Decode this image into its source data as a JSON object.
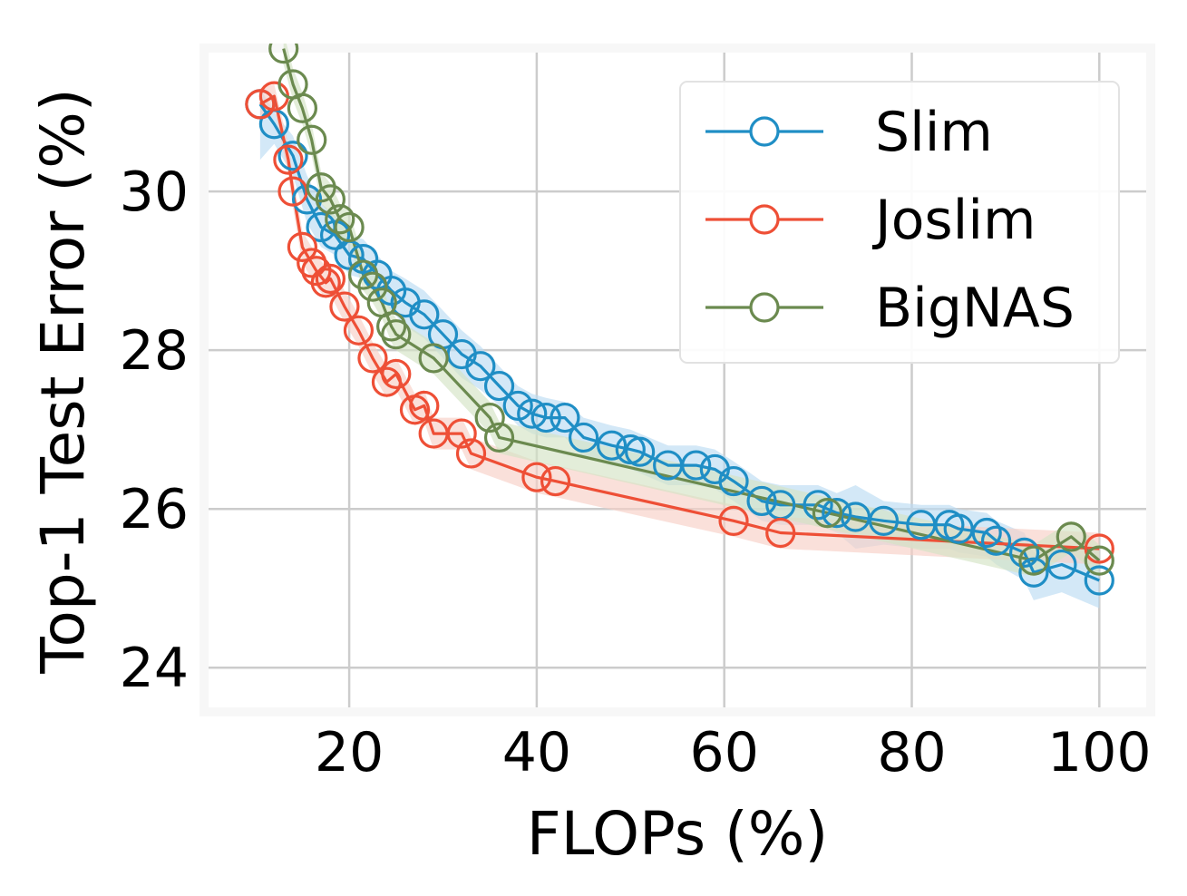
{
  "chart_data": {
    "type": "line",
    "title": "",
    "xlabel": "FLOPs (%)",
    "ylabel": "Top-1 Test Error (%)",
    "xlim": [
      5,
      105
    ],
    "ylim": [
      23.5,
      31.75
    ],
    "xticks": [
      20,
      40,
      60,
      80,
      100
    ],
    "yticks": [
      24,
      26,
      28,
      30
    ],
    "grid": true,
    "legend": "top-right",
    "series": [
      {
        "name": "Slim",
        "color": "#1f8ec5",
        "band_color": "#bcdcf3",
        "x": [
          10.5,
          12,
          14,
          15.5,
          17,
          18.5,
          20,
          21.5,
          23,
          24.5,
          26,
          28,
          30,
          32,
          34,
          36,
          38,
          39.5,
          41,
          43,
          45,
          48,
          50,
          51,
          54,
          57,
          59,
          61,
          64,
          66,
          70,
          72,
          74,
          77,
          81,
          84,
          85,
          88,
          89,
          92,
          93,
          96,
          100
        ],
        "y": [
          31.1,
          30.85,
          30.45,
          29.9,
          29.55,
          29.45,
          29.2,
          29.15,
          28.95,
          28.75,
          28.6,
          28.45,
          28.2,
          27.95,
          27.8,
          27.55,
          27.3,
          27.2,
          27.15,
          27.15,
          26.9,
          26.8,
          26.75,
          26.72,
          26.55,
          26.55,
          26.5,
          26.35,
          26.1,
          26.05,
          26.05,
          25.95,
          25.9,
          25.85,
          25.8,
          25.8,
          25.75,
          25.7,
          25.6,
          25.45,
          25.2,
          25.3,
          25.1
        ],
        "upper": [
          31.3,
          31.0,
          30.7,
          30.2,
          29.85,
          29.7,
          29.45,
          29.4,
          29.2,
          29.0,
          28.9,
          28.75,
          28.5,
          28.25,
          28.05,
          27.8,
          27.55,
          27.45,
          27.4,
          27.35,
          27.15,
          27.05,
          27.0,
          26.95,
          26.8,
          26.8,
          26.75,
          26.6,
          26.35,
          26.3,
          26.3,
          26.2,
          26.3,
          26.1,
          26.05,
          26.05,
          26.0,
          25.95,
          25.85,
          25.7,
          25.45,
          25.55,
          25.5
        ],
        "lower": [
          30.4,
          30.6,
          30.2,
          29.6,
          29.3,
          29.2,
          28.95,
          28.9,
          28.7,
          28.5,
          28.3,
          28.15,
          27.9,
          27.65,
          27.5,
          27.3,
          27.05,
          26.95,
          26.9,
          26.9,
          26.65,
          26.55,
          26.5,
          26.45,
          26.3,
          26.3,
          26.25,
          26.1,
          25.85,
          25.8,
          25.8,
          25.7,
          25.5,
          25.55,
          25.5,
          25.5,
          25.45,
          25.4,
          25.3,
          25.1,
          24.85,
          24.95,
          24.75
        ]
      },
      {
        "name": "Joslim",
        "color": "#ee4f36",
        "band_color": "#f8cfc6",
        "x": [
          10.5,
          12,
          13.5,
          14,
          15,
          16,
          16.5,
          17.5,
          18,
          19.5,
          21,
          22.5,
          24,
          25,
          27,
          28,
          29,
          32,
          33,
          40,
          42,
          61,
          66,
          100
        ],
        "y": [
          31.1,
          31.2,
          30.4,
          30.0,
          29.3,
          29.1,
          29.0,
          28.85,
          28.9,
          28.55,
          28.25,
          27.9,
          27.6,
          27.7,
          27.25,
          27.3,
          26.95,
          26.95,
          26.7,
          26.4,
          26.35,
          25.85,
          25.7,
          25.5
        ],
        "upper": [
          31.3,
          31.35,
          30.6,
          30.2,
          29.5,
          29.3,
          29.2,
          29.05,
          29.1,
          28.75,
          28.45,
          28.1,
          27.8,
          27.9,
          27.45,
          27.5,
          27.15,
          27.15,
          26.9,
          26.6,
          26.55,
          26.05,
          25.9,
          25.7
        ],
        "lower": [
          30.9,
          31.05,
          30.2,
          29.8,
          29.1,
          28.9,
          28.8,
          28.65,
          28.7,
          28.35,
          28.05,
          27.7,
          27.4,
          27.5,
          27.05,
          27.1,
          26.75,
          26.75,
          26.5,
          26.2,
          26.15,
          25.65,
          25.5,
          25.3
        ]
      },
      {
        "name": "BigNAS",
        "color": "#6b8a4f",
        "band_color": "#d4e3c4",
        "x": [
          13,
          14,
          15,
          16,
          17,
          18,
          19,
          20,
          21.5,
          22.5,
          23.5,
          24.5,
          25,
          29,
          35,
          36,
          71,
          93,
          97,
          100
        ],
        "y": [
          31.8,
          31.35,
          31.05,
          30.65,
          30.05,
          29.9,
          29.65,
          29.55,
          28.95,
          28.8,
          28.6,
          28.3,
          28.2,
          27.9,
          27.15,
          26.9,
          25.95,
          25.35,
          25.65,
          25.35
        ],
        "upper": [
          32.0,
          31.55,
          31.25,
          30.85,
          30.25,
          30.1,
          29.85,
          29.75,
          29.15,
          29.0,
          28.8,
          28.5,
          28.4,
          28.1,
          27.35,
          27.1,
          26.15,
          25.55,
          25.85,
          25.55
        ],
        "lower": [
          31.6,
          31.15,
          30.85,
          30.45,
          29.85,
          29.7,
          29.45,
          29.35,
          28.75,
          28.6,
          28.4,
          28.1,
          28.0,
          27.7,
          26.95,
          26.7,
          25.75,
          25.15,
          25.45,
          25.15
        ]
      }
    ]
  }
}
